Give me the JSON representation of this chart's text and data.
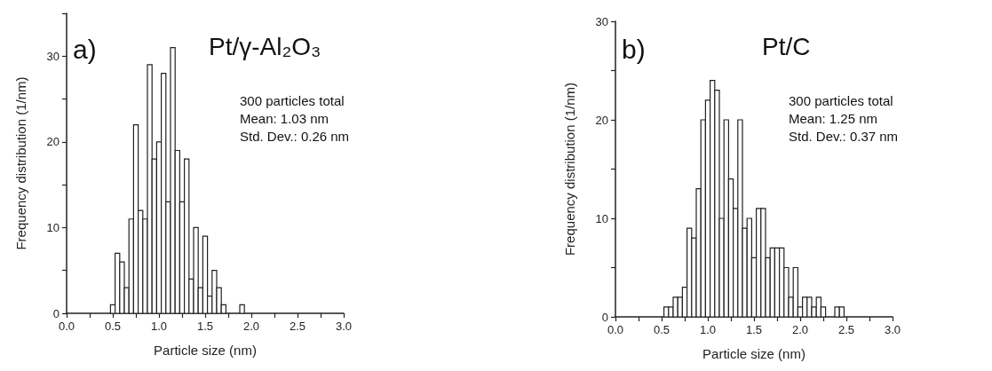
{
  "chart_data": [
    {
      "type": "histogram",
      "title": "Pt/γ-Al₂O₃",
      "xlabel": "Particle size (nm)",
      "ylabel": "Frequency distribution (1/nm)",
      "annotations": [
        "a)",
        "300 particles total",
        "Mean: 1.03 nm",
        "Std. Dev.: 0.26 nm"
      ],
      "bins": [
        0.475,
        0.525,
        0.575,
        0.625,
        0.675,
        0.725,
        0.775,
        0.825,
        0.875,
        0.925,
        0.975,
        1.025,
        1.075,
        1.125,
        1.175,
        1.225,
        1.275,
        1.325,
        1.375,
        1.425,
        1.475,
        1.525,
        1.575,
        1.625,
        1.675,
        1.725,
        1.775,
        1.825,
        1.875,
        1.925
      ],
      "values": [
        1,
        7,
        6,
        3,
        11,
        22,
        12,
        11,
        29,
        18,
        20,
        28,
        13,
        31,
        19,
        13,
        18,
        4,
        10,
        3,
        9,
        2,
        5,
        3,
        1,
        0,
        0,
        0,
        1
      ],
      "color": "#ffffff",
      "xlim": [
        0,
        3
      ],
      "xticks": [
        {
          "value": 0,
          "label": "0.0"
        },
        {
          "value": 0.25,
          "label": null
        },
        {
          "value": 0.5,
          "label": "0.5"
        },
        {
          "value": 0.75,
          "label": null
        },
        {
          "value": 1,
          "label": "1.0"
        },
        {
          "value": 1.25,
          "label": null
        },
        {
          "value": 1.5,
          "label": "1.5"
        },
        {
          "value": 1.75,
          "label": null
        },
        {
          "value": 2,
          "label": "2.0"
        },
        {
          "value": 2.25,
          "label": null
        },
        {
          "value": 2.5,
          "label": "2.5"
        },
        {
          "value": 2.75,
          "label": null
        },
        {
          "value": 3,
          "label": "3.0"
        }
      ],
      "ylim": [
        0,
        35
      ],
      "yticks": [
        0,
        {
          "value": 5,
          "label": null
        },
        10,
        {
          "value": 15,
          "label": null
        },
        20,
        {
          "value": 25,
          "label": null
        },
        30,
        {
          "value": 35,
          "label": null
        }
      ],
      "grid": false
    },
    {
      "type": "histogram",
      "title": "Pt/C",
      "xlabel": "Particle size (nm)",
      "ylabel": "Frequency distribution (1/nm)",
      "annotations": [
        "b)",
        "300 particles total",
        "Mean: 1.25 nm",
        "Std. Dev.: 0.37 nm"
      ],
      "bins": [
        0.525,
        0.575,
        0.625,
        0.675,
        0.725,
        0.775,
        0.825,
        0.875,
        0.925,
        0.975,
        1.025,
        1.075,
        1.125,
        1.175,
        1.225,
        1.275,
        1.325,
        1.375,
        1.425,
        1.475,
        1.525,
        1.575,
        1.625,
        1.675,
        1.725,
        1.775,
        1.825,
        1.875,
        1.925,
        1.975,
        2.025,
        2.075,
        2.125,
        2.175,
        2.225,
        2.275,
        2.325,
        2.375,
        2.425,
        2.475
      ],
      "values": [
        1,
        1,
        2,
        2,
        3,
        9,
        8,
        13,
        20,
        22,
        24,
        23,
        10,
        20,
        14,
        11,
        20,
        9,
        10,
        6,
        11,
        11,
        6,
        7,
        7,
        7,
        5,
        2,
        5,
        1,
        2,
        2,
        1,
        2,
        1,
        0,
        0,
        1,
        1
      ],
      "color": "#ffffff",
      "xlim": [
        0,
        3
      ],
      "xticks": [
        {
          "value": 0,
          "label": "0.0"
        },
        {
          "value": 0.25,
          "label": null
        },
        {
          "value": 0.5,
          "label": "0.5"
        },
        {
          "value": 0.75,
          "label": null
        },
        {
          "value": 1,
          "label": "1.0"
        },
        {
          "value": 1.25,
          "label": null
        },
        {
          "value": 1.5,
          "label": "1.5"
        },
        {
          "value": 1.75,
          "label": null
        },
        {
          "value": 2,
          "label": "2.0"
        },
        {
          "value": 2.25,
          "label": null
        },
        {
          "value": 2.5,
          "label": "2.5"
        },
        {
          "value": 2.75,
          "label": null
        },
        {
          "value": 3,
          "label": "3.0"
        }
      ],
      "ylim": [
        0,
        30
      ],
      "yticks": [
        0,
        {
          "value": 5,
          "label": null
        },
        10,
        {
          "value": 15,
          "label": null
        },
        20,
        {
          "value": 25,
          "label": null
        },
        30
      ],
      "grid": false
    }
  ]
}
